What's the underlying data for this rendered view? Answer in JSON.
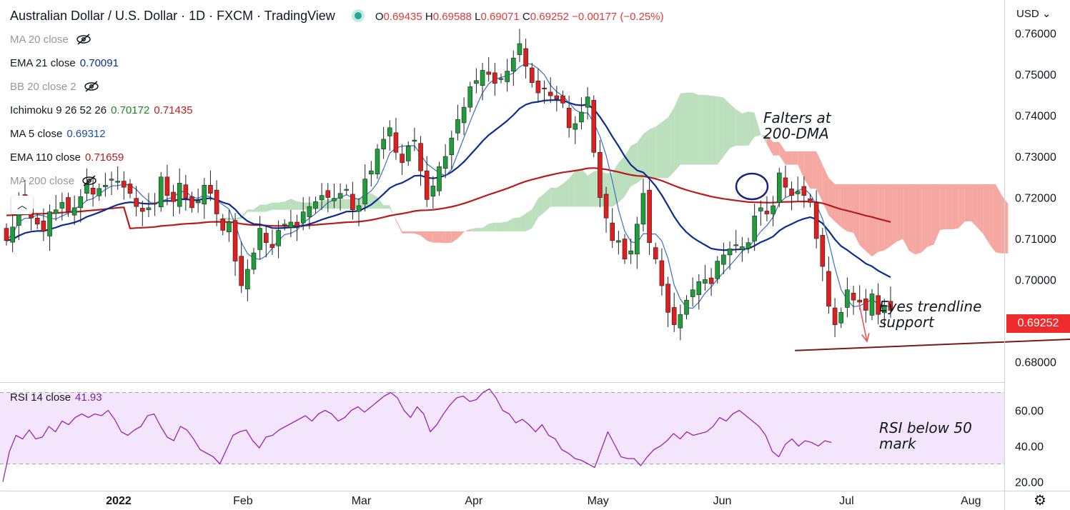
{
  "header": {
    "title": "Australian Dollar / U.S. Dollar · 1D · FXCM · TradingView",
    "ohlc": {
      "o_key": "O",
      "o": "0.69435",
      "h_key": "H",
      "h": "0.69588",
      "l_key": "L",
      "l": "0.69071",
      "c_key": "C",
      "c": "0.69252",
      "chg": "−0.00177 (−0.25%)"
    }
  },
  "currency_selector": "USD",
  "indicators": [
    {
      "label": "MA 20 close",
      "value": "",
      "hidden": true
    },
    {
      "label": "EMA 21 close",
      "value": "0.70091",
      "color": "#0d2c8f"
    },
    {
      "label": "BB 20 close 2",
      "value": "",
      "hidden": true
    },
    {
      "label": "Ichimoku 9 26 52 26",
      "value": "0.70172",
      "value2": "0.71435",
      "color": "#1b8a1b",
      "color2": "#c21b1b"
    },
    {
      "label": "MA 5 close",
      "value": "0.69312",
      "color": "#1c4fa0"
    },
    {
      "label": "EMA 110 close",
      "value": "0.71659",
      "color": "#b71c1c"
    },
    {
      "label": "MA 200 close",
      "value": "",
      "hidden": true
    }
  ],
  "rsi_legend": {
    "label": "RSI 14 close",
    "value": "41.93",
    "color": "#7b1fa2"
  },
  "price_tag": "0.69252",
  "annotations": {
    "dma": "Falters at\n200-DMA",
    "trend": "Eyes trendline\nsupport",
    "rsi": "RSI below 50\nmark"
  },
  "colors": {
    "up": "#1e9e3a",
    "down": "#e01e1e",
    "rsi": "#9c27b0",
    "cloud_bull": "#a5d6a7",
    "cloud_bear": "#f28b82"
  },
  "chart_data": {
    "type": "candlestick",
    "x_axis": {
      "ticks": [
        "2022",
        "Feb",
        "Mar",
        "Apr",
        "May",
        "Jun",
        "Jul",
        "Aug"
      ]
    },
    "price_axis": {
      "range": [
        0.675,
        0.765
      ],
      "ticks": [
        "0.76000",
        "0.75000",
        "0.74000",
        "0.73000",
        "0.72000",
        "0.71000",
        "0.70000",
        "0.69000",
        "0.68000"
      ]
    },
    "rsi_axis": {
      "range": [
        15,
        75
      ],
      "ticks": [
        "60.00",
        "40.00",
        "20.00"
      ],
      "band": [
        30,
        70
      ]
    },
    "closes": [
      0.7095,
      0.7128,
      0.7195,
      0.718,
      0.715,
      0.7135,
      0.7118,
      0.7165,
      0.717,
      0.7188,
      0.7165,
      0.7175,
      0.7202,
      0.7235,
      0.7208,
      0.7222,
      0.723,
      0.7245,
      0.724,
      0.7225,
      0.721,
      0.7178,
      0.7166,
      0.7175,
      0.7185,
      0.725,
      0.7205,
      0.719,
      0.7235,
      0.7198,
      0.7175,
      0.7192,
      0.723,
      0.721,
      0.716,
      0.712,
      0.714,
      0.7045,
      0.6985,
      0.7025,
      0.7065,
      0.7125,
      0.709,
      0.7078,
      0.712,
      0.7135,
      0.714,
      0.713,
      0.7165,
      0.7178,
      0.719,
      0.7205,
      0.72,
      0.7198,
      0.721,
      0.722,
      0.717,
      0.718,
      0.7245,
      0.7265,
      0.7318,
      0.7342,
      0.737,
      0.731,
      0.7285,
      0.7325,
      0.734,
      0.7265,
      0.7195,
      0.7228,
      0.7275,
      0.73,
      0.7345,
      0.739,
      0.742,
      0.747,
      0.7485,
      0.751,
      0.75,
      0.7478,
      0.749,
      0.7508,
      0.754,
      0.7575,
      0.752,
      0.748,
      0.7455,
      0.7465,
      0.7448,
      0.744,
      0.743,
      0.737,
      0.738,
      0.7408,
      0.7445,
      0.731,
      0.72,
      0.715,
      0.7095,
      0.7095,
      0.705,
      0.707,
      0.7135,
      0.721,
      0.709,
      0.705,
      0.6985,
      0.692,
      0.689,
      0.6915,
      0.695,
      0.6975,
      0.6995,
      0.7,
      0.699,
      0.7045,
      0.706,
      0.7075,
      0.7085,
      0.708,
      0.709,
      0.7155,
      0.7175,
      0.716,
      0.718,
      0.726,
      0.7225,
      0.7205,
      0.7215,
      0.7205,
      0.7188,
      0.71,
      0.7032,
      0.6935,
      0.689,
      0.692,
      0.6975,
      0.695,
      0.6945,
      0.6925,
      0.6965,
      0.6915,
      0.6935,
      0.6925
    ],
    "rsi": [
      20,
      37,
      46,
      44,
      49,
      44,
      45,
      51,
      48,
      54,
      52,
      56,
      58,
      56,
      58,
      57,
      60,
      55,
      48,
      46,
      49,
      51,
      57,
      58,
      51,
      45,
      43,
      51,
      49,
      44,
      38,
      36,
      34,
      30,
      38,
      46,
      48,
      49,
      43,
      39,
      45,
      46,
      49,
      51,
      53,
      55,
      57,
      54,
      58,
      60,
      58,
      54,
      56,
      60,
      62,
      59,
      62,
      65,
      68,
      70,
      67,
      60,
      56,
      62,
      58,
      48,
      52,
      58,
      63,
      67,
      68,
      65,
      66,
      70,
      72,
      67,
      60,
      58,
      53,
      55,
      52,
      48,
      52,
      46,
      44,
      38,
      36,
      33,
      32,
      30,
      28,
      38,
      48,
      41,
      34,
      33,
      33,
      29,
      34,
      38,
      40,
      43,
      47,
      44,
      48,
      46,
      47,
      48,
      51,
      56,
      54,
      58,
      60,
      57,
      54,
      51,
      46,
      37,
      34,
      41,
      44,
      40,
      43,
      42,
      40,
      43,
      42
    ],
    "ma5": [],
    "ema21": [],
    "ema110": [],
    "trendline": {
      "from": [
        131,
        0.6827
      ],
      "to": [
        178,
        0.6863
      ]
    }
  }
}
